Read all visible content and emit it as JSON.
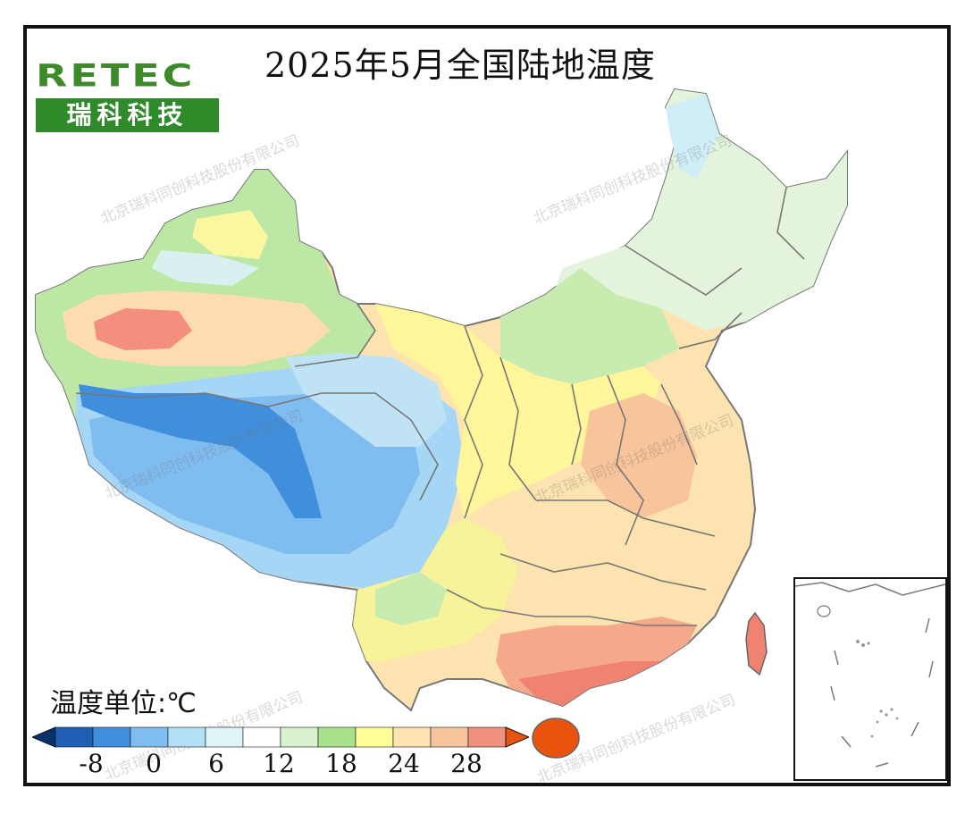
{
  "title": "2025年5月全国陆地温度",
  "logo": {
    "word": "RETEC",
    "subtitle": "瑞科科技"
  },
  "legend": {
    "title": "温度单位:℃",
    "ticks": [
      "-8",
      "0",
      "6",
      "12",
      "18",
      "24",
      "28"
    ],
    "colors": [
      "#08306b",
      "#1f5fb4",
      "#3f8fdc",
      "#7fbdf0",
      "#b3e0f7",
      "#dff4f7",
      "#ffffff",
      "#d9f2d0",
      "#a9e28a",
      "#ffff99",
      "#fde3b0",
      "#f8c49b",
      "#f0917f",
      "#e8540e"
    ]
  },
  "watermark": "北京瑞科同创科技股份有限公司",
  "map_regions": {
    "hot_basin": "#f28f7f",
    "warm_south": "#f5a98a",
    "hainan": "#e8540e",
    "plateau_cold": "#4b97dc"
  }
}
